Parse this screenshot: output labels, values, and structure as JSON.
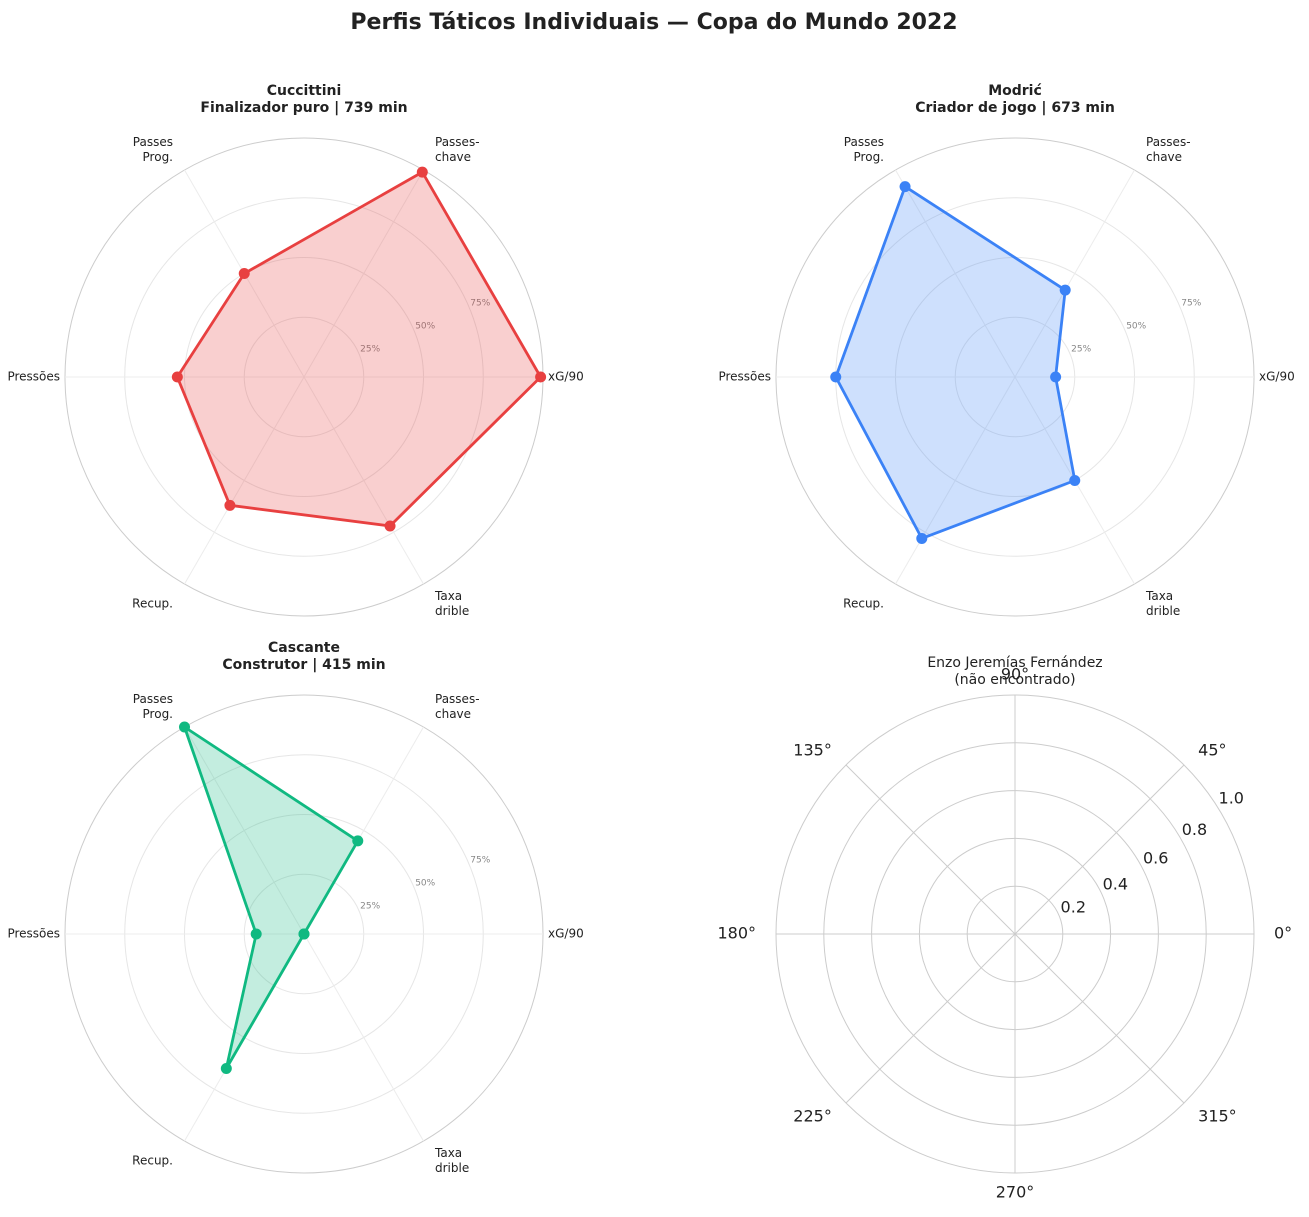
{
  "title": "Perfis Táticos Individuais — Copa do Mundo 2022",
  "chart_data": [
    {
      "type": "radar",
      "title": "Cuccittini",
      "subtitle": "Finalizador puro | 739 min",
      "categories": [
        [
          "xG/90"
        ],
        [
          "Passes-",
          "chave"
        ],
        [
          "Passes",
          "Prog."
        ],
        [
          "Pressões"
        ],
        [
          "Recup."
        ],
        [
          "Taxa",
          "drible"
        ]
      ],
      "values": [
        99,
        99,
        50,
        53,
        62,
        72
      ],
      "color": "#e84040",
      "ylim": [
        0,
        100
      ],
      "yticks": [
        {
          "value": 25,
          "label": "25%"
        },
        {
          "value": 50,
          "label": "50%"
        },
        {
          "value": 75,
          "label": "75%"
        }
      ]
    },
    {
      "type": "radar",
      "title": "Modrić",
      "subtitle": "Criador de jogo | 673 min",
      "categories": [
        [
          "xG/90"
        ],
        [
          "Passes-",
          "chave"
        ],
        [
          "Passes",
          "Prog."
        ],
        [
          "Pressões"
        ],
        [
          "Recup."
        ],
        [
          "Taxa",
          "drible"
        ]
      ],
      "values": [
        17,
        42,
        92,
        75,
        78,
        50
      ],
      "color": "#3b82f6",
      "ylim": [
        0,
        100
      ],
      "yticks": [
        {
          "value": 25,
          "label": "25%"
        },
        {
          "value": 50,
          "label": "50%"
        },
        {
          "value": 75,
          "label": "75%"
        }
      ]
    },
    {
      "type": "radar",
      "title": "Cascante",
      "subtitle": "Construtor | 415 min",
      "categories": [
        [
          "xG/90"
        ],
        [
          "Passes-",
          "chave"
        ],
        [
          "Passes",
          "Prog."
        ],
        [
          "Pressões"
        ],
        [
          "Recup."
        ],
        [
          "Taxa",
          "drible"
        ]
      ],
      "values": [
        0,
        45,
        100,
        20,
        65,
        0
      ],
      "color": "#10b981",
      "ylim": [
        0,
        100
      ],
      "yticks": [
        {
          "value": 25,
          "label": "25%"
        },
        {
          "value": 50,
          "label": "50%"
        },
        {
          "value": 75,
          "label": "75%"
        }
      ]
    },
    {
      "type": "polar",
      "title": "Enzo Jeremías Fernández",
      "subtitle": "(não encontrado)",
      "ylim": [
        0,
        1
      ],
      "yticks": [
        0.2,
        0.4,
        0.6,
        0.8,
        {
          "value": 1,
          "label": "1.0"
        }
      ],
      "xticks": [
        {
          "value": 0,
          "label": "0°"
        },
        {
          "value": 45,
          "label": "45°"
        },
        {
          "value": 90,
          "label": "90°"
        },
        {
          "value": 135,
          "label": "135°"
        },
        {
          "value": 180,
          "label": "180°"
        },
        {
          "value": 225,
          "label": "225°"
        },
        {
          "value": 270,
          "label": "270°"
        },
        {
          "value": 315,
          "label": "315°"
        }
      ]
    }
  ]
}
